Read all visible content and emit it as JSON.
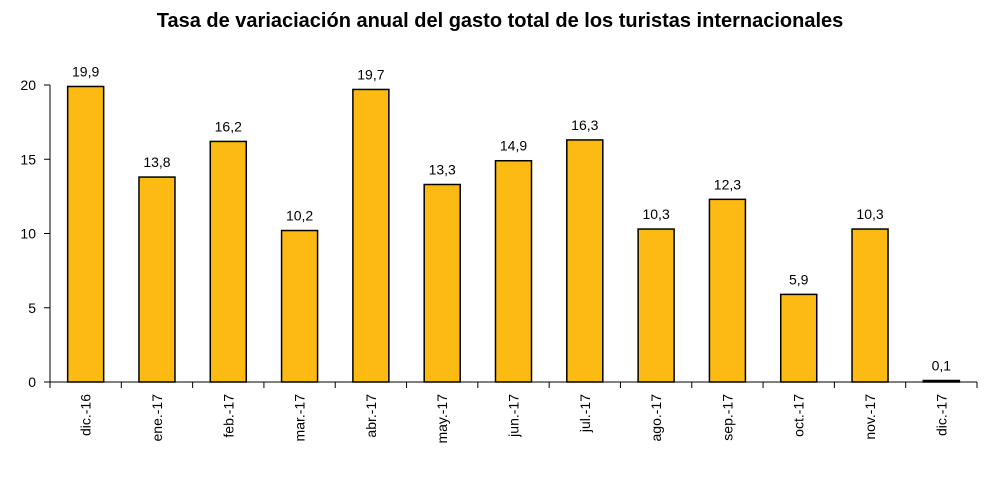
{
  "chart_data": {
    "type": "bar",
    "title": "Tasa de variaciación anual del gasto total de los turistas internacionales",
    "categories": [
      "dic.-16",
      "ene.-17",
      "feb.-17",
      "mar.-17",
      "abr.-17",
      "may.-17",
      "jun.-17",
      "jul.-17",
      "ago.-17",
      "sep.-17",
      "oct.-17",
      "nov.-17",
      "dic.-17"
    ],
    "values": [
      19.9,
      13.8,
      16.2,
      10.2,
      19.7,
      13.3,
      14.9,
      16.3,
      10.3,
      12.3,
      5.9,
      10.3,
      0.1
    ],
    "value_labels": [
      "19,9",
      "13,8",
      "16,2",
      "10,2",
      "19,7",
      "13,3",
      "14,9",
      "16,3",
      "10,3",
      "12,3",
      "5,9",
      "10,3",
      "0,1"
    ],
    "yticks": [
      0,
      5,
      10,
      15,
      20
    ],
    "ylim": [
      0,
      20
    ],
    "xlabel": "",
    "ylabel": "",
    "grid": false,
    "bar_color": "#FDBA12",
    "bar_stroke": "#000000"
  }
}
